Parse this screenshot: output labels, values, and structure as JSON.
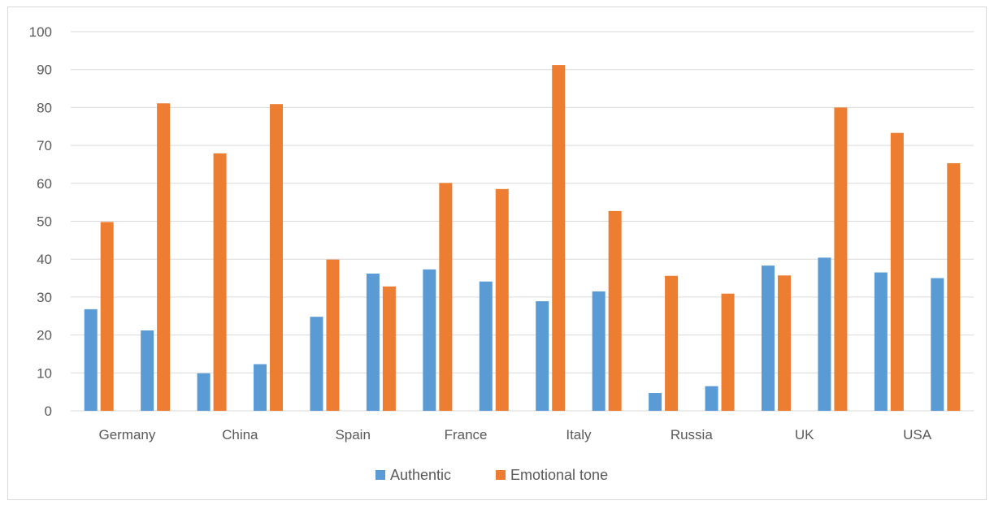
{
  "chart_data": {
    "type": "bar",
    "title": "",
    "xlabel": "",
    "ylabel": "",
    "ylim": [
      0,
      100
    ],
    "yticks": [
      0,
      10,
      20,
      30,
      40,
      50,
      60,
      70,
      80,
      90,
      100
    ],
    "categories": [
      "Germany",
      "",
      "China",
      "",
      "Spain",
      "",
      "France",
      "",
      "Italy",
      "",
      "Russia",
      "",
      "UK",
      "",
      "USA",
      ""
    ],
    "series": [
      {
        "name": "Authentic",
        "color": "#5b9bd5",
        "values": [
          26.8,
          21.2,
          9.9,
          12.3,
          24.8,
          36.2,
          37.3,
          34.1,
          28.9,
          31.5,
          4.7,
          6.5,
          38.3,
          40.4,
          36.5,
          35.0
        ]
      },
      {
        "name": "Emotional tone",
        "color": "#ed7d31",
        "values": [
          49.8,
          81.1,
          67.9,
          80.9,
          39.9,
          32.8,
          60.1,
          58.5,
          91.2,
          52.7,
          35.6,
          30.9,
          35.7,
          80.0,
          73.3,
          65.3
        ]
      }
    ],
    "grid": true,
    "legend": "bottom"
  }
}
